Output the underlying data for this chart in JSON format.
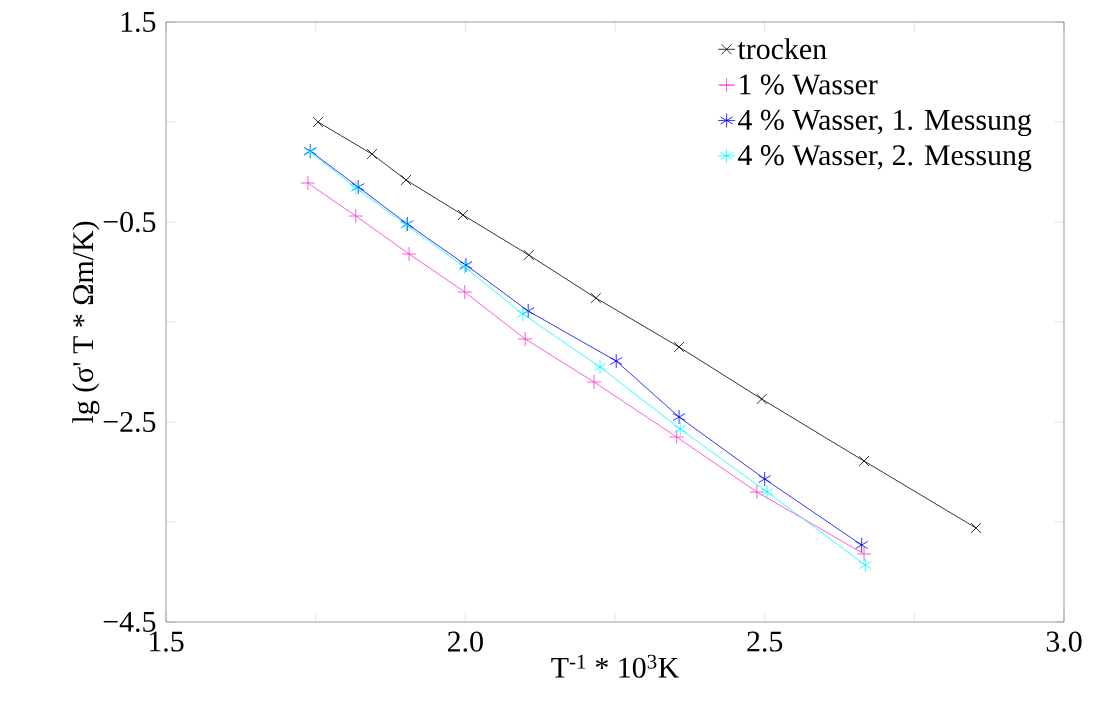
{
  "chart_data": {
    "type": "line",
    "xlabel": "T$^{-1}$ * 10$^{3}$K",
    "ylabel": "lg (σ' T * Ωm/K)",
    "xlim": [
      1.5,
      3.0
    ],
    "ylim": [
      -4.5,
      1.5
    ],
    "xticks": [
      1.5,
      {
        "value": 1.75,
        "label": null
      },
      {
        "value": 2.0,
        "label": "2.0"
      },
      {
        "value": 2.25,
        "label": null
      },
      2.5,
      {
        "value": 2.75,
        "label": null
      },
      {
        "value": 3.0,
        "label": "3.0"
      }
    ],
    "yticks": [
      {
        "value": -4.5,
        "label": "−4.5"
      },
      {
        "value": -3.5,
        "label": null
      },
      {
        "value": -2.5,
        "label": "−2.5"
      },
      {
        "value": -1.5,
        "label": null
      },
      {
        "value": -0.5,
        "label": "−0.5"
      },
      {
        "value": 0.5,
        "label": null
      },
      1.5
    ],
    "grid": false,
    "legend": "top right",
    "line_style": "solid",
    "series": [
      {
        "name": "trocken",
        "color": "#000000",
        "marker": "x",
        "x": [
          1.754,
          1.844,
          1.901,
          1.996,
          2.106,
          2.218,
          2.357,
          2.495,
          2.666,
          2.853
        ],
        "values": [
          0.5,
          0.18,
          -0.08,
          -0.43,
          -0.83,
          -1.26,
          -1.75,
          -2.27,
          -2.89,
          -3.56
        ]
      },
      {
        "name": "1 % Wasser",
        "color": "#ff33cc",
        "marker": "plus",
        "x": [
          1.737,
          1.817,
          1.906,
          1.999,
          2.1,
          2.215,
          2.353,
          2.487,
          2.666
        ],
        "values": [
          -0.11,
          -0.44,
          -0.82,
          -1.2,
          -1.67,
          -2.1,
          -2.65,
          -3.2,
          -3.82
        ]
      },
      {
        "name": "4 % Wasser, 1. Messung",
        "color": "#0000ff",
        "marker": "cross",
        "x": [
          1.741,
          1.821,
          1.903,
          2.001,
          2.105,
          2.252,
          2.357,
          2.5,
          2.662
        ],
        "values": [
          0.21,
          -0.15,
          -0.52,
          -0.93,
          -1.39,
          -1.89,
          -2.45,
          -3.07,
          -3.73
        ]
      },
      {
        "name": "4 % Wasser, 2. Messung",
        "color": "#00ffff",
        "marker": "cross",
        "x": [
          1.741,
          1.817,
          1.901,
          1.999,
          2.096,
          2.225,
          2.359,
          2.504,
          2.668
        ],
        "values": [
          0.2,
          -0.16,
          -0.53,
          -0.95,
          -1.42,
          -1.95,
          -2.57,
          -3.2,
          -3.93
        ]
      }
    ]
  }
}
